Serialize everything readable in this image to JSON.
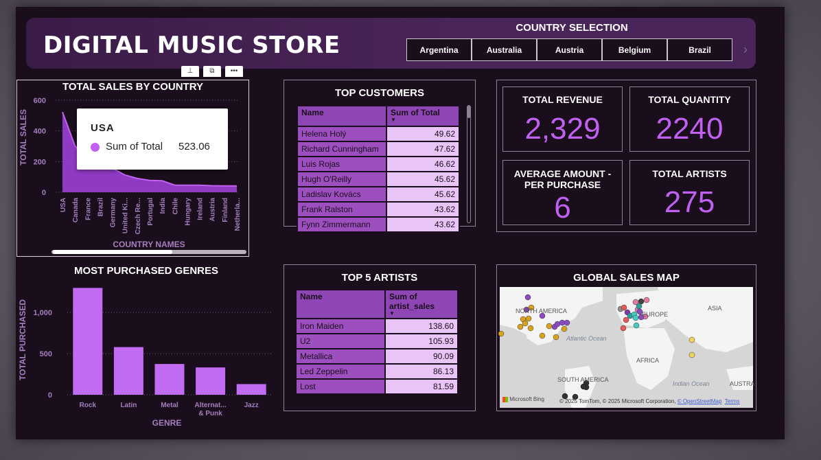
{
  "title": "DIGITAL MUSIC STORE",
  "country_selection": {
    "title": "COUNTRY SELECTION",
    "options": [
      "Argentina",
      "Australia",
      "Austria",
      "Belgium",
      "Brazil"
    ]
  },
  "sales_by_country": {
    "title": "TOTAL SALES BY COUNTRY",
    "tooltip": {
      "title": "USA",
      "series": "Sum of Total",
      "value": "523.06"
    }
  },
  "top_customers": {
    "title": "TOP CUSTOMERS",
    "columns": [
      "Name",
      "Sum of Total"
    ],
    "rows": [
      {
        "name": "Helena Holý",
        "value": "49.62"
      },
      {
        "name": "Richard Cunningham",
        "value": "47.62"
      },
      {
        "name": "Luis Rojas",
        "value": "46.62"
      },
      {
        "name": "Hugh O'Reilly",
        "value": "45.62"
      },
      {
        "name": "Ladislav Kovács",
        "value": "45.62"
      },
      {
        "name": "Frank Ralston",
        "value": "43.62"
      },
      {
        "name": "Fynn Zimmermann",
        "value": "43.62"
      }
    ]
  },
  "kpis": {
    "total_revenue": {
      "label": "TOTAL REVENUE",
      "value": "2,329"
    },
    "total_quantity": {
      "label": "TOTAL QUANTITY",
      "value": "2240"
    },
    "avg_amount": {
      "label_line1": "AVERAGE AMOUNT -",
      "label_line2": "PER PURCHASE",
      "value": "6"
    },
    "total_artists": {
      "label": "TOTAL ARTISTS",
      "value": "275"
    }
  },
  "genres": {
    "title": "MOST PURCHASED GENRES"
  },
  "top_artists": {
    "title": "TOP 5 ARTISTS",
    "columns": [
      "Name",
      "Sum of artist_sales"
    ],
    "rows": [
      {
        "name": "Iron Maiden",
        "value": "138.60"
      },
      {
        "name": "U2",
        "value": "105.93"
      },
      {
        "name": "Metallica",
        "value": "90.09"
      },
      {
        "name": "Led Zeppelin",
        "value": "86.13"
      },
      {
        "name": "Lost",
        "value": "81.59"
      }
    ]
  },
  "map": {
    "title": "GLOBAL SALES MAP",
    "labels": [
      "NORTH AMERICA",
      "EUROPE",
      "ASIA",
      "AFRICA",
      "SOUTH AMERICA",
      "AUSTRA"
    ],
    "oceans": [
      "Atlantic Ocean",
      "Indian Ocean"
    ],
    "credit_prefix": "© 2025 TomTom, © 2025 Microsoft Corporation, ",
    "credit_link1": "© OpenStreetMap",
    "credit_link2": "Terms",
    "bing": "Microsoft Bing"
  },
  "chart_data": [
    {
      "type": "area",
      "title": "TOTAL SALES BY COUNTRY",
      "xlabel": "COUNTRY NAMES",
      "ylabel": "TOTAL SALES",
      "ylim": [
        0,
        600
      ],
      "yticks": [
        "0",
        "200",
        "400",
        "600"
      ],
      "categories": [
        "USA",
        "Canada",
        "France",
        "Brazil",
        "Germany",
        "United Ki...",
        "Czech Re...",
        "Portugal",
        "India",
        "Chile",
        "Hungary",
        "Ireland",
        "Austria",
        "Finland",
        "Netherla..."
      ],
      "values": [
        523.06,
        303.96,
        195.1,
        190.1,
        156.48,
        112.86,
        90.24,
        77.24,
        75.26,
        46.62,
        45.62,
        45.62,
        42.62,
        41.62,
        40.62
      ],
      "color": "#a443e0"
    },
    {
      "type": "bar",
      "title": "MOST PURCHASED GENRES",
      "xlabel": "GENRE",
      "ylabel": "TOTAL PURCHASED",
      "ylim": [
        0,
        1350
      ],
      "yticks": [
        "0",
        "500",
        "1,000"
      ],
      "categories": [
        "Rock",
        "Latin",
        "Metal",
        "Alternat... & Punk",
        "Jazz"
      ],
      "values": [
        1297,
        579,
        374,
        332,
        130
      ],
      "color": "#c16af2"
    }
  ]
}
